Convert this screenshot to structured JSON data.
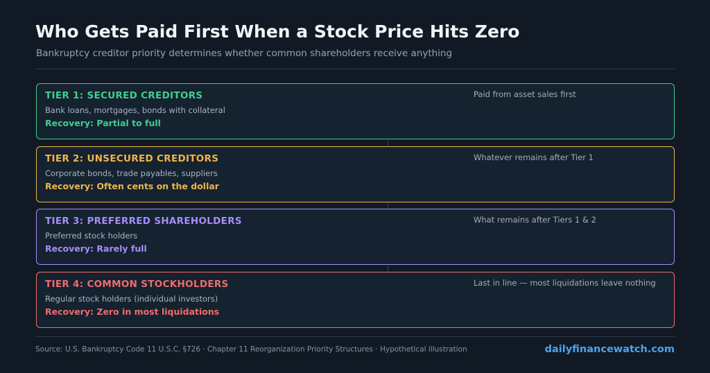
{
  "header": {
    "title": "Who Gets Paid First When a Stock Price Hits Zero",
    "subtitle": "Bankruptcy creditor priority determines whether common shareholders receive anything"
  },
  "tiers": [
    {
      "name": "TIER 1: SECURED CREDITORS",
      "description": "Bank loans, mortgages, bonds with collateral",
      "recovery": "Recovery: Partial to full",
      "note": "Paid from asset sales first",
      "color": "#3fcf8e"
    },
    {
      "name": "TIER 2: UNSECURED CREDITORS",
      "description": "Corporate bonds, trade payables, suppliers",
      "recovery": "Recovery: Often cents on the dollar",
      "note": "Whatever remains after Tier 1",
      "color": "#f0b54a"
    },
    {
      "name": "TIER 3: PREFERRED SHAREHOLDERS",
      "description": "Preferred stock holders",
      "recovery": "Recovery: Rarely full",
      "note": "What remains after Tiers 1 & 2",
      "color": "#a48ef7"
    },
    {
      "name": "TIER 4: COMMON STOCKHOLDERS",
      "description": "Regular stock holders (individual investors)",
      "recovery": "Recovery: Zero in most liquidations",
      "note": "Last in line — most liquidations leave nothing",
      "color": "#f06b6b"
    }
  ],
  "footer": {
    "source": "Source: U.S. Bankruptcy Code 11 U.S.C. §726 · Chapter 11 Reorganization Priority Structures  ·  Hypothetical illustration",
    "brand": "dailyfinancewatch.com"
  }
}
